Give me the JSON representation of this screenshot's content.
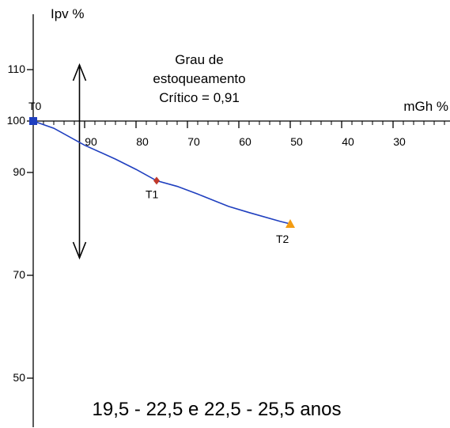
{
  "chart_data": {
    "type": "line",
    "xlabel": "mGh %",
    "ylabel": "Ipv %",
    "xlim": [
      100,
      20
    ],
    "ylim": [
      45,
      122
    ],
    "x_ticks": [
      90,
      80,
      70,
      60,
      50,
      40,
      30
    ],
    "y_ticks": [
      110,
      100,
      90,
      70,
      50
    ],
    "series": [
      {
        "color": "#1f3fbf",
        "x": [
          100,
          96,
          90,
          84,
          80,
          76,
          72,
          68,
          62,
          58,
          52,
          50
        ],
        "y": [
          100,
          98.6,
          95.3,
          92.6,
          90.6,
          88.4,
          87.3,
          85.8,
          83.4,
          82.2,
          80.5,
          80
        ]
      }
    ],
    "points": [
      {
        "label": "T0",
        "x": 100,
        "y": 100,
        "marker": "square",
        "color": "#1f3fbf"
      },
      {
        "label": "T1",
        "x": 76,
        "y": 88.4,
        "marker": "diamond",
        "color": "#c0392b"
      },
      {
        "label": "T2",
        "x": 50,
        "y": 80,
        "marker": "triangle",
        "color": "#f39c12"
      }
    ],
    "critical_line": {
      "x": 91
    },
    "annotation": [
      "Grau  de",
      "estoqueamento",
      "Crítico =  0,91"
    ],
    "caption": "19,5 - 22,5  e  22,5 - 25,5 anos",
    "grid": false
  }
}
